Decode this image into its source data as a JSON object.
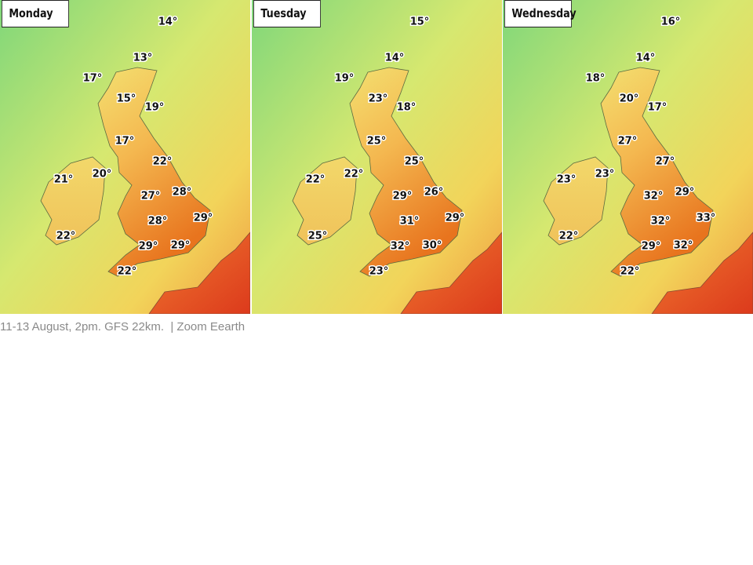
{
  "panels": [
    {
      "day": "Monday",
      "temps": [
        "14°",
        "13°",
        "17°",
        "15°",
        "19°",
        "17°",
        "22°",
        "20°",
        "21°",
        "27°",
        "28°",
        "28°",
        "29°",
        "22°",
        "29°",
        "29°",
        "22°"
      ]
    },
    {
      "day": "Tuesday",
      "temps": [
        "15°",
        "14°",
        "19°",
        "23°",
        "18°",
        "25°",
        "25°",
        "22°",
        "22°",
        "29°",
        "26°",
        "31°",
        "29°",
        "25°",
        "32°",
        "30°",
        "23°"
      ]
    },
    {
      "day": "Wednesday",
      "temps": [
        "16°",
        "14°",
        "18°",
        "20°",
        "17°",
        "27°",
        "27°",
        "23°",
        "23°",
        "32°",
        "29°",
        "32°",
        "33°",
        "22°",
        "29°",
        "32°",
        "22°"
      ]
    }
  ],
  "caption": {
    "text": "11-13 August, 2pm. GFS 22km.",
    "credit": "| Zoom Eearth"
  }
}
